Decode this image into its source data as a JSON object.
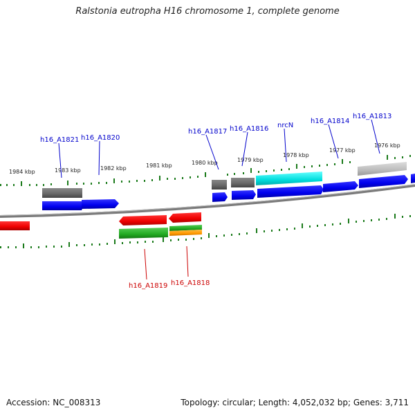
{
  "title": "Ralstonia eutropha H16 chromosome 1, complete genome",
  "footer": {
    "accession": "Accession: NC_008313",
    "summary": "Topology: circular; Length: 4,052,032 bp; Genes: 3,711"
  },
  "colors": {
    "forward_cds": "#0000ee",
    "reverse_cds": "#ee0000",
    "gene": "#666666",
    "highlight_gene": "#00dddd",
    "green_feature": "#22aa22",
    "orange_feature": "#ff9900",
    "pseudo_gene": "#aaaaaa",
    "backbone": "#888888",
    "tick": "#1a7a1a",
    "forward_label": "#0000cc",
    "reverse_label": "#cc0000"
  },
  "scale_labels": [
    "1984 kbp",
    "1983 kbp",
    "1982 kbp",
    "1981 kbp",
    "1980 kbp",
    "1979 kbp",
    "1978 kbp",
    "1977 kbp",
    "1976 kbp"
  ],
  "gene_labels": {
    "forward": [
      "h16_A1821",
      "h16_A1820",
      "h16_A1817",
      "h16_A1816",
      "nrcN",
      "h16_A1814",
      "h16_A1813"
    ],
    "reverse": [
      "h16_A1819",
      "h16_A1818"
    ]
  }
}
